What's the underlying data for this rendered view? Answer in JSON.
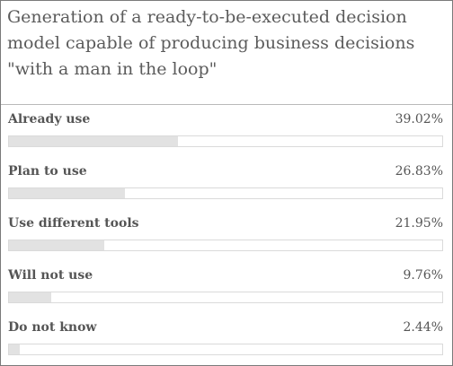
{
  "title": "Generation of a ready-to-be-executed decision model capable of producing business decisions \"with a man in the loop\"",
  "chart_data": {
    "type": "bar",
    "orientation": "horizontal",
    "title": "Generation of a ready-to-be-executed decision model capable of producing business decisions \"with a man in the loop\"",
    "categories": [
      "Already use",
      "Plan to use",
      "Use different tools",
      "Will not use",
      "Do not know"
    ],
    "values": [
      39.02,
      26.83,
      21.95,
      9.76,
      2.44
    ],
    "value_labels": [
      "39.02%",
      "26.83%",
      "21.95%",
      "9.76%",
      "2.44%"
    ],
    "unit": "%",
    "xlim": [
      0,
      100
    ],
    "grid": false,
    "colors": {
      "fill": "#e2e2e2",
      "track_border": "#dadada"
    }
  }
}
